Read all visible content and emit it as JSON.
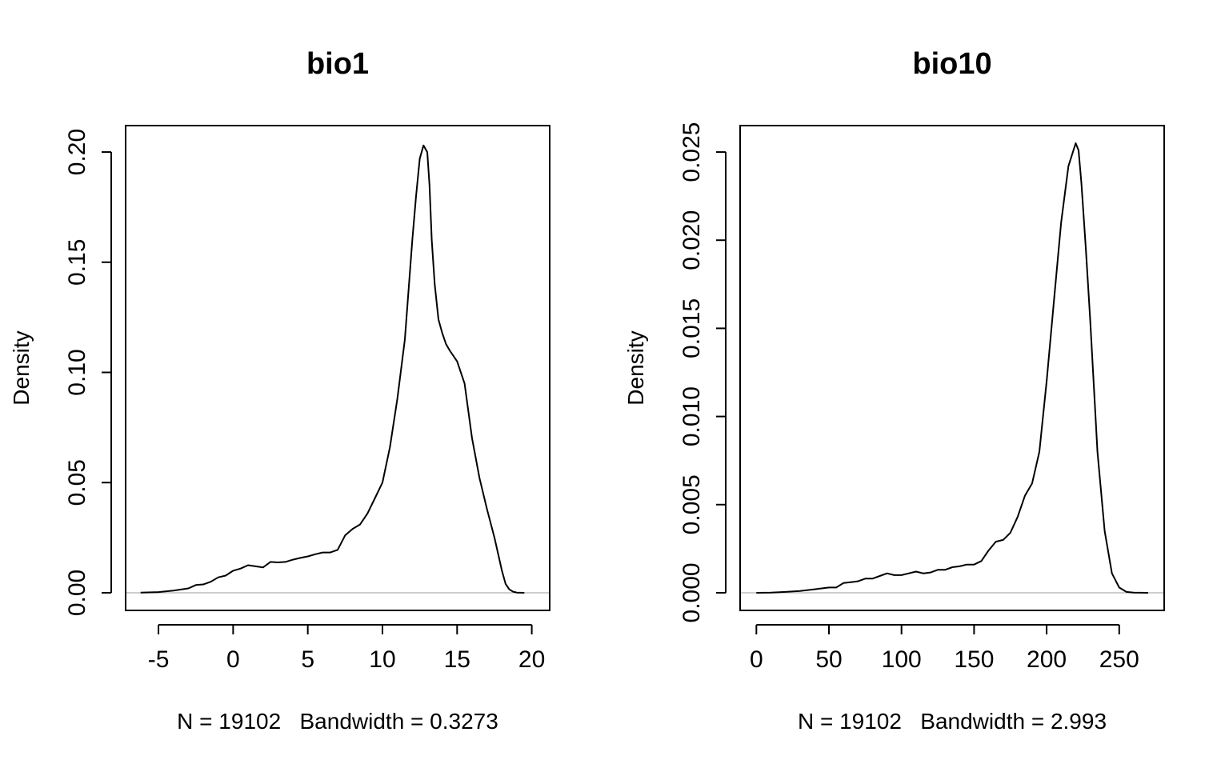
{
  "chart_data": [
    {
      "type": "line",
      "title": "bio1",
      "xlabel": "N = 19102   Bandwidth = 0.3273",
      "ylabel": "Density",
      "xlim": [
        -7.2,
        21.2
      ],
      "ylim": [
        -0.008,
        0.212
      ],
      "xticks": [
        -5,
        0,
        5,
        10,
        15,
        20
      ],
      "xtick_labels": [
        "-5",
        "0",
        "5",
        "10",
        "15",
        "20"
      ],
      "yticks": [
        0.0,
        0.05,
        0.1,
        0.15,
        0.2
      ],
      "ytick_labels": [
        "0.00",
        "0.05",
        "0.10",
        "0.15",
        "0.20"
      ],
      "baseline": 0,
      "series": [
        {
          "x": [
            -6.2,
            -5,
            -4,
            -3,
            -2.5,
            -2,
            -1.5,
            -1,
            -0.5,
            0,
            0.5,
            1,
            1.5,
            2,
            2.5,
            3,
            3.5,
            4,
            4.5,
            5,
            5.5,
            6,
            6.5,
            7,
            7.5,
            8,
            8.5,
            9,
            9.5,
            10,
            10.5,
            11,
            11.5,
            12,
            12.25,
            12.5,
            12.75,
            13,
            13.15,
            13.3,
            13.5,
            13.75,
            14,
            14.25,
            14.5,
            15,
            15.5,
            16,
            16.5,
            17,
            17.5,
            18,
            18.25,
            18.5,
            18.75,
            19,
            19.5
          ],
          "y": [
            0.0001,
            0.0003,
            0.001,
            0.002,
            0.0035,
            0.0038,
            0.005,
            0.007,
            0.0078,
            0.01,
            0.011,
            0.0125,
            0.012,
            0.0115,
            0.014,
            0.0138,
            0.014,
            0.015,
            0.0158,
            0.0165,
            0.0175,
            0.0183,
            0.0183,
            0.0195,
            0.026,
            0.029,
            0.031,
            0.036,
            0.043,
            0.05,
            0.066,
            0.088,
            0.115,
            0.16,
            0.18,
            0.197,
            0.203,
            0.2,
            0.185,
            0.16,
            0.14,
            0.124,
            0.118,
            0.113,
            0.11,
            0.105,
            0.095,
            0.07,
            0.052,
            0.038,
            0.025,
            0.01,
            0.004,
            0.0015,
            0.0005,
            0.0001,
            0.0
          ]
        }
      ]
    },
    {
      "type": "line",
      "title": "bio10",
      "xlabel": "N = 19102   Bandwidth = 2.993",
      "ylabel": "Density",
      "xlim": [
        -11.2,
        281
      ],
      "ylim": [
        -0.001,
        0.0265
      ],
      "xticks": [
        0,
        50,
        100,
        150,
        200,
        250
      ],
      "xtick_labels": [
        "0",
        "50",
        "100",
        "150",
        "200",
        "250"
      ],
      "yticks": [
        0.0,
        0.005,
        0.01,
        0.015,
        0.02,
        0.025
      ],
      "ytick_labels": [
        "0.000",
        "0.005",
        "0.010",
        "0.015",
        "0.020",
        "0.025"
      ],
      "baseline": 0,
      "series": [
        {
          "x": [
            0,
            10,
            20,
            30,
            40,
            45,
            50,
            55,
            60,
            65,
            70,
            75,
            80,
            85,
            90,
            95,
            100,
            105,
            110,
            115,
            120,
            125,
            130,
            135,
            140,
            145,
            150,
            155,
            160,
            165,
            170,
            175,
            180,
            185,
            190,
            195,
            200,
            205,
            210,
            215,
            220,
            222,
            224,
            227,
            230,
            235,
            240,
            245,
            250,
            255,
            260,
            270
          ],
          "y": [
            0.0,
            1e-05,
            5e-05,
            0.0001,
            0.0002,
            0.00025,
            0.0003,
            0.0003,
            0.00055,
            0.0006,
            0.00065,
            0.0008,
            0.0008,
            0.00095,
            0.0011,
            0.001,
            0.001,
            0.0011,
            0.0012,
            0.0011,
            0.00115,
            0.0013,
            0.0013,
            0.00145,
            0.0015,
            0.0016,
            0.0016,
            0.0018,
            0.0024,
            0.0029,
            0.003,
            0.0034,
            0.0043,
            0.0055,
            0.0062,
            0.008,
            0.012,
            0.0165,
            0.021,
            0.0242,
            0.0255,
            0.0251,
            0.0232,
            0.0195,
            0.0155,
            0.008,
            0.0035,
            0.0011,
            0.0003,
            5e-05,
            1e-05,
            0.0
          ]
        }
      ]
    }
  ]
}
